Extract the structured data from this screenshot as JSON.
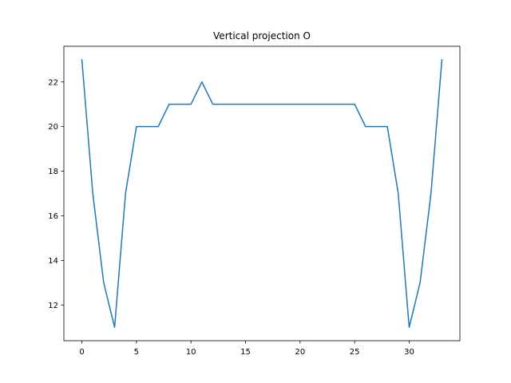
{
  "chart_data": {
    "type": "line",
    "title": "Vertical projection O",
    "xlabel": "",
    "ylabel": "",
    "xlim": [
      -1.65,
      34.65
    ],
    "ylim": [
      10.4,
      23.6
    ],
    "x_ticks": [
      0,
      5,
      10,
      15,
      20,
      25,
      30
    ],
    "y_ticks": [
      12,
      14,
      16,
      18,
      20,
      22
    ],
    "grid": false,
    "legend": "none",
    "line_color": "#1f77b4",
    "series": [
      {
        "x": [
          0,
          1,
          2,
          3,
          4,
          5,
          6,
          7,
          8,
          9,
          10,
          11,
          12,
          13,
          14,
          15,
          16,
          17,
          18,
          19,
          20,
          21,
          22,
          23,
          24,
          25,
          26,
          27,
          28,
          29,
          30,
          31,
          32,
          33
        ],
        "values": [
          23,
          17,
          13,
          11,
          17,
          20,
          20,
          20,
          21,
          21,
          21,
          22,
          21,
          21,
          21,
          21,
          21,
          21,
          21,
          21,
          21,
          21,
          21,
          21,
          21,
          21,
          20,
          20,
          20,
          17,
          11,
          13,
          17,
          23
        ]
      }
    ]
  }
}
